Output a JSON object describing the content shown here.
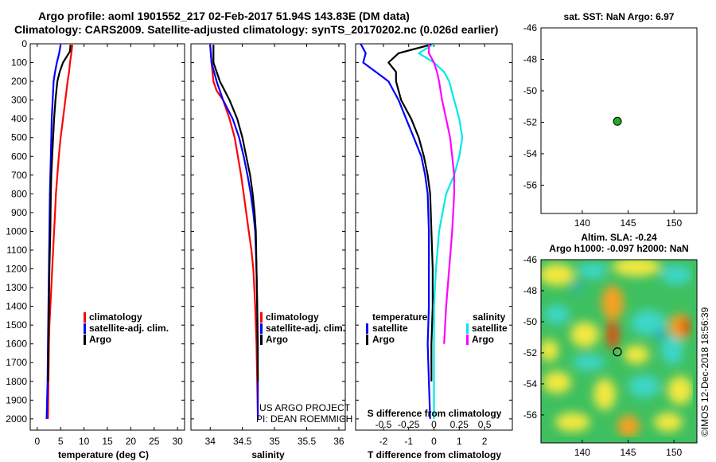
{
  "header": {
    "title1": "Argo profile: aoml 1901552_217 02-Feb-2017 51.94S 143.83E (DM data)",
    "title2": "Climatology: CARS2009. Satellite-adjusted climatology: synTS_20170202.nc (0.026d earlier)"
  },
  "colors": {
    "climatology": "#ff0000",
    "satellite": "#0000ff",
    "argo": "#000000",
    "salt_sat": "#00e8e8",
    "salt_argo": "#ff00ff",
    "marker": "#22aa22"
  },
  "chart_data": [
    {
      "type": "line",
      "id": "temperature",
      "xlabel": "temperature (deg C)",
      "ylabel": "",
      "xlim": [
        -1.5,
        31.5
      ],
      "ylim": [
        2060,
        0
      ],
      "xticks": [
        0,
        5,
        10,
        15,
        20,
        25,
        30
      ],
      "xtick_labels": [
        "0",
        "5",
        "10",
        "15",
        "20",
        "25",
        "30"
      ],
      "yticks": [
        0,
        100,
        200,
        300,
        400,
        500,
        600,
        700,
        800,
        900,
        1000,
        1100,
        1200,
        1300,
        1400,
        1500,
        1600,
        1700,
        1800,
        1900,
        2000
      ],
      "ytick_labels": [
        "0",
        "100",
        "200",
        "300",
        "400",
        "500",
        "600",
        "700",
        "800",
        "900",
        "1000",
        "1100",
        "1200",
        "1300",
        "1400",
        "1500",
        "1600",
        "1700",
        "1800",
        "1900",
        "2000"
      ],
      "legend": [
        "climatology",
        "satellite-adj. clim.",
        "Argo"
      ],
      "series": [
        {
          "name": "climatology",
          "color": "#ff0000",
          "x": [
            7.5,
            7.3,
            7.0,
            6.8,
            6.5,
            6.0,
            5.5,
            5.0,
            4.6,
            4.3,
            4.0,
            3.8,
            3.6,
            3.4,
            3.2,
            3.0,
            2.8,
            2.6,
            2.5,
            2.4,
            2.3
          ],
          "depth": [
            5,
            50,
            100,
            150,
            200,
            300,
            400,
            500,
            600,
            700,
            800,
            900,
            1000,
            1100,
            1200,
            1300,
            1400,
            1500,
            1600,
            1800,
            2000
          ]
        },
        {
          "name": "satellite",
          "color": "#0000ff",
          "x": [
            5.0,
            4.7,
            4.2,
            3.8,
            3.5,
            3.3,
            3.1,
            3.0,
            2.9,
            2.8,
            2.7,
            2.6,
            2.5,
            2.4,
            2.3,
            2.2,
            2.1,
            2.0
          ],
          "depth": [
            5,
            50,
            100,
            150,
            200,
            300,
            400,
            500,
            600,
            700,
            800,
            1000,
            1200,
            1400,
            1600,
            1800,
            1900,
            2000
          ]
        },
        {
          "name": "Argo",
          "color": "#000000",
          "x": [
            7.1,
            7.0,
            5.5,
            4.8,
            4.3,
            3.9,
            3.6,
            3.4,
            3.2,
            3.0,
            2.9,
            2.8,
            2.6,
            2.5,
            2.4,
            2.3
          ],
          "depth": [
            5,
            40,
            100,
            150,
            200,
            300,
            400,
            500,
            600,
            700,
            800,
            1000,
            1200,
            1400,
            1600,
            1800
          ]
        }
      ],
      "annotations": []
    },
    {
      "type": "line",
      "id": "salinity",
      "xlabel": "salinity",
      "ylabel": "",
      "xlim": [
        33.7,
        36.1
      ],
      "ylim": [
        2060,
        0
      ],
      "xticks": [
        34,
        34.5,
        35,
        35.5,
        36
      ],
      "xtick_labels": [
        "34",
        "34.5",
        "35",
        "35.5",
        "36"
      ],
      "legend": [
        "climatology",
        "satellite-adj. clim.",
        "Argo"
      ],
      "series": [
        {
          "name": "climatology",
          "color": "#ff0000",
          "x": [
            34.0,
            34.02,
            34.05,
            34.1,
            34.2,
            34.3,
            34.38,
            34.43,
            34.48,
            34.52,
            34.56,
            34.6,
            34.64,
            34.67,
            34.7,
            34.72,
            34.73,
            34.74
          ],
          "depth": [
            5,
            100,
            200,
            250,
            300,
            400,
            500,
            600,
            700,
            800,
            900,
            1000,
            1100,
            1200,
            1400,
            1600,
            1800,
            2000
          ]
        },
        {
          "name": "satellite",
          "color": "#0000ff",
          "x": [
            34.0,
            34.02,
            34.1,
            34.2,
            34.35,
            34.45,
            34.52,
            34.58,
            34.63,
            34.67,
            34.7,
            34.72,
            34.73,
            34.74,
            34.74,
            34.74
          ],
          "depth": [
            5,
            100,
            200,
            300,
            400,
            500,
            600,
            700,
            800,
            900,
            1000,
            1200,
            1400,
            1600,
            1800,
            2000
          ]
        },
        {
          "name": "Argo",
          "color": "#000000",
          "x": [
            34.05,
            34.05,
            34.15,
            34.3,
            34.42,
            34.5,
            34.56,
            34.62,
            34.66,
            34.69,
            34.71,
            34.72,
            34.73,
            34.74
          ],
          "depth": [
            5,
            100,
            200,
            300,
            400,
            500,
            600,
            700,
            800,
            900,
            1000,
            1200,
            1400,
            1800
          ]
        }
      ],
      "annotations": [
        "US ARGO PROJECT",
        "PI: DEAN ROEMMICH"
      ]
    },
    {
      "type": "line",
      "id": "difference",
      "xlabel": "T difference from climatology",
      "x2label": "S difference from climatology",
      "xlim": [
        -3.1,
        3.1
      ],
      "ylim": [
        2060,
        0
      ],
      "xticks": [
        -2,
        -1,
        0,
        1,
        2
      ],
      "xtick_labels": [
        "-2",
        "-1",
        "0",
        "1",
        "2"
      ],
      "x2ticks": [
        -0.5,
        -0.25,
        0,
        0.25,
        0.5
      ],
      "x2tick_labels": [
        "-0.5",
        "-0.25",
        "0",
        "0.25",
        "0.5"
      ],
      "legend_temperature": [
        "temperature",
        "satellite",
        "Argo"
      ],
      "legend_salinity": [
        "salinity",
        "satellite",
        "Argo"
      ],
      "series": [
        {
          "name": "T satellite",
          "color": "#0000ff",
          "x": [
            -2.9,
            -2.7,
            -2.8,
            -2.3,
            -1.8,
            -1.4,
            -1.1,
            -0.8,
            -0.5,
            -0.35,
            -0.25,
            -0.2,
            -0.2,
            -0.2,
            -0.25,
            -0.2,
            -0.15
          ],
          "depth": [
            0,
            50,
            100,
            150,
            200,
            300,
            400,
            500,
            600,
            700,
            800,
            1000,
            1200,
            1400,
            1600,
            1800,
            2000
          ]
        },
        {
          "name": "T Argo",
          "color": "#000000",
          "x": [
            0.0,
            -1.4,
            -1.8,
            -1.5,
            -1.5,
            -1.3,
            -0.9,
            -0.6,
            -0.4,
            -0.25,
            -0.15,
            -0.1,
            -0.05,
            -0.05,
            -0.1,
            -0.1
          ],
          "depth": [
            0,
            50,
            100,
            150,
            200,
            300,
            400,
            500,
            600,
            700,
            800,
            1000,
            1200,
            1400,
            1600,
            1800
          ]
        },
        {
          "name": "S satellite",
          "color": "#00e8e8",
          "x": [
            0.0,
            -0.15,
            0.0,
            0.1,
            0.15,
            0.2,
            0.25,
            0.28,
            0.25,
            0.2,
            0.12,
            0.05,
            0.02,
            0.0,
            0.0,
            0.0,
            0.0
          ],
          "depth": [
            0,
            50,
            100,
            150,
            200,
            300,
            400,
            500,
            600,
            700,
            800,
            1000,
            1200,
            1400,
            1600,
            1800,
            2000
          ]
        },
        {
          "name": "S Argo",
          "color": "#ff00ff",
          "x": [
            -0.05,
            -0.05,
            0.0,
            0.03,
            0.05,
            0.08,
            0.12,
            0.16,
            0.18,
            0.2,
            0.2,
            0.18,
            0.15,
            0.12,
            0.1
          ],
          "depth": [
            0,
            50,
            100,
            150,
            200,
            300,
            400,
            500,
            600,
            700,
            800,
            1000,
            1200,
            1400,
            1600
          ]
        }
      ],
      "annotations": []
    },
    {
      "type": "scatter",
      "id": "sst_map",
      "title": "sat. SST: NaN Argo: 6.97",
      "xlim": [
        135.5,
        152.5
      ],
      "ylim": [
        -57.8,
        -46
      ],
      "xticks": [
        140,
        145,
        150
      ],
      "xtick_labels": [
        "140",
        "145",
        "150"
      ],
      "yticks": [
        -46,
        -48,
        -50,
        -52,
        -54,
        -56
      ],
      "ytick_labels": [
        "-46",
        "-48",
        "-50",
        "-52",
        "-54",
        "-56"
      ],
      "points": [
        {
          "lon": 143.83,
          "lat": -51.94
        }
      ]
    },
    {
      "type": "heatmap",
      "id": "sla_map",
      "title1": "Altim. SLA: -0.24",
      "title2": "Argo h1000: -0.097 h2000: NaN",
      "xlim": [
        135.5,
        152.5
      ],
      "ylim": [
        -57.8,
        -46
      ],
      "xticks": [
        140,
        145,
        150
      ],
      "xtick_labels": [
        "140",
        "145",
        "150"
      ],
      "yticks": [
        -46,
        -48,
        -50,
        -52,
        -54,
        -56
      ],
      "ytick_labels": [
        "-46",
        "-48",
        "-50",
        "-52",
        "-54",
        "-56"
      ],
      "points": [
        {
          "lon": 143.83,
          "lat": -51.94
        }
      ],
      "side_text": "©IMOS 12-Dec-2018 18:56:39"
    }
  ]
}
